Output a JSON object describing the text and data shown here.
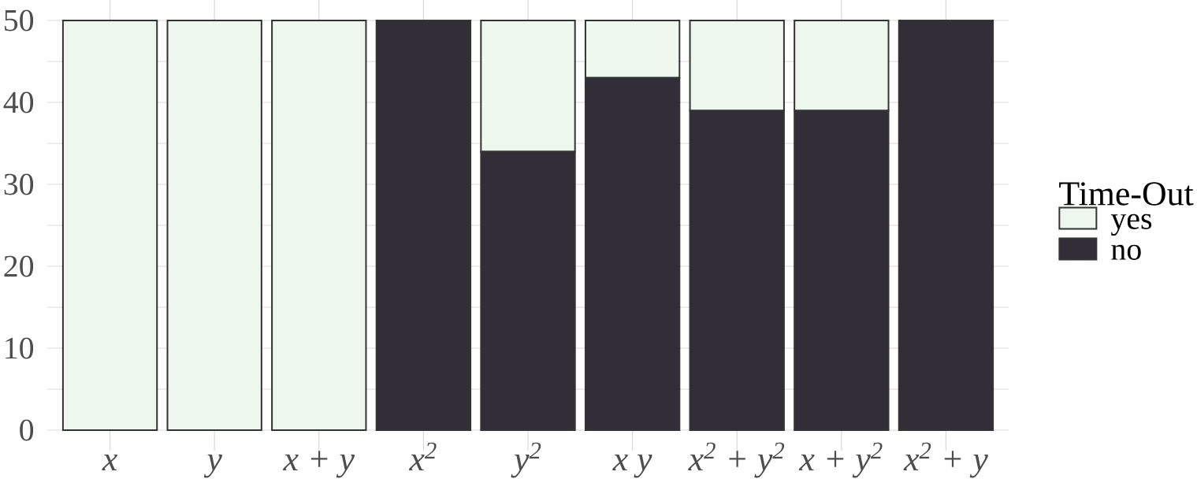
{
  "chart_data": {
    "type": "bar",
    "stacked": true,
    "categories": [
      "x",
      "y",
      "x + y",
      "x$^{2}$",
      "y$^{2}$",
      "x y",
      "x$^{2}$ + y$^{2}$",
      "x + y$^{2}$",
      "x$^{2}$ + y"
    ],
    "series": [
      {
        "name": "no",
        "color": "#312e38",
        "values": [
          0,
          0,
          0,
          50,
          34,
          43,
          39,
          39,
          50
        ]
      },
      {
        "name": "yes",
        "color": "#eef7ee",
        "values": [
          50,
          50,
          50,
          0,
          16,
          7,
          11,
          11,
          0
        ]
      }
    ],
    "legend_title": "Time-Out",
    "legend": "right",
    "grid": true,
    "ylim": [
      -2.5,
      52.5
    ],
    "yticks": [
      0,
      {
        "value": 5,
        "label": null
      },
      10,
      {
        "value": 15,
        "label": null
      },
      20,
      {
        "value": 25,
        "label": null
      },
      30,
      {
        "value": 35,
        "label": null
      },
      40,
      {
        "value": 45,
        "label": null
      },
      50
    ]
  }
}
